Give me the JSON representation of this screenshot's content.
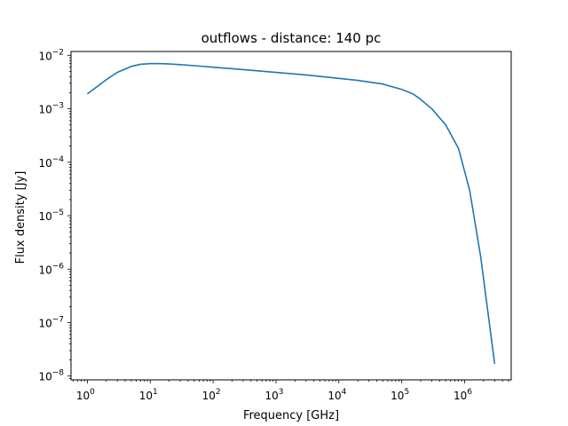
{
  "chart_data": {
    "type": "line",
    "title": "outflows - distance: 140 pc",
    "xlabel": "Frequency [GHz]",
    "ylabel": "Flux density [Jy]",
    "xscale": "log",
    "yscale": "log",
    "xlim": [
      0.55,
      5500000
    ],
    "ylim": [
      8.5e-09,
      0.0118
    ],
    "grid": false,
    "colors": {
      "line": "#1f77b4",
      "axes": "#000000"
    },
    "x_major_ticks": [
      {
        "base": "10",
        "exp": "0",
        "value": 1
      },
      {
        "base": "10",
        "exp": "1",
        "value": 10
      },
      {
        "base": "10",
        "exp": "2",
        "value": 100
      },
      {
        "base": "10",
        "exp": "3",
        "value": 1000
      },
      {
        "base": "10",
        "exp": "4",
        "value": 10000
      },
      {
        "base": "10",
        "exp": "5",
        "value": 100000
      },
      {
        "base": "10",
        "exp": "6",
        "value": 1000000
      }
    ],
    "y_major_ticks": [
      {
        "base": "10",
        "exp": "−8",
        "value": 1e-08
      },
      {
        "base": "10",
        "exp": "−7",
        "value": 1e-07
      },
      {
        "base": "10",
        "exp": "−6",
        "value": 1e-06
      },
      {
        "base": "10",
        "exp": "−5",
        "value": 1e-05
      },
      {
        "base": "10",
        "exp": "−4",
        "value": 0.0001
      },
      {
        "base": "10",
        "exp": "−3",
        "value": 0.001
      },
      {
        "base": "10",
        "exp": "−2",
        "value": 0.01
      }
    ],
    "series": [
      {
        "x": [
          1,
          1.5,
          2,
          3,
          5,
          7,
          10,
          15,
          20,
          30,
          50,
          100,
          300,
          1000,
          3000,
          10000,
          20000,
          50000,
          100000,
          150000,
          200000,
          300000,
          500000,
          800000,
          1200000,
          1800000,
          3000000
        ],
        "y": [
          0.0019,
          0.0027,
          0.0035,
          0.0048,
          0.0062,
          0.0068,
          0.007,
          0.007,
          0.0069,
          0.0067,
          0.0064,
          0.006,
          0.0054,
          0.0048,
          0.0043,
          0.0037,
          0.0034,
          0.0029,
          0.0023,
          0.0019,
          0.0015,
          0.001,
          0.0005,
          0.00018,
          3e-05,
          1.7e-06,
          1.7e-08
        ]
      }
    ]
  }
}
